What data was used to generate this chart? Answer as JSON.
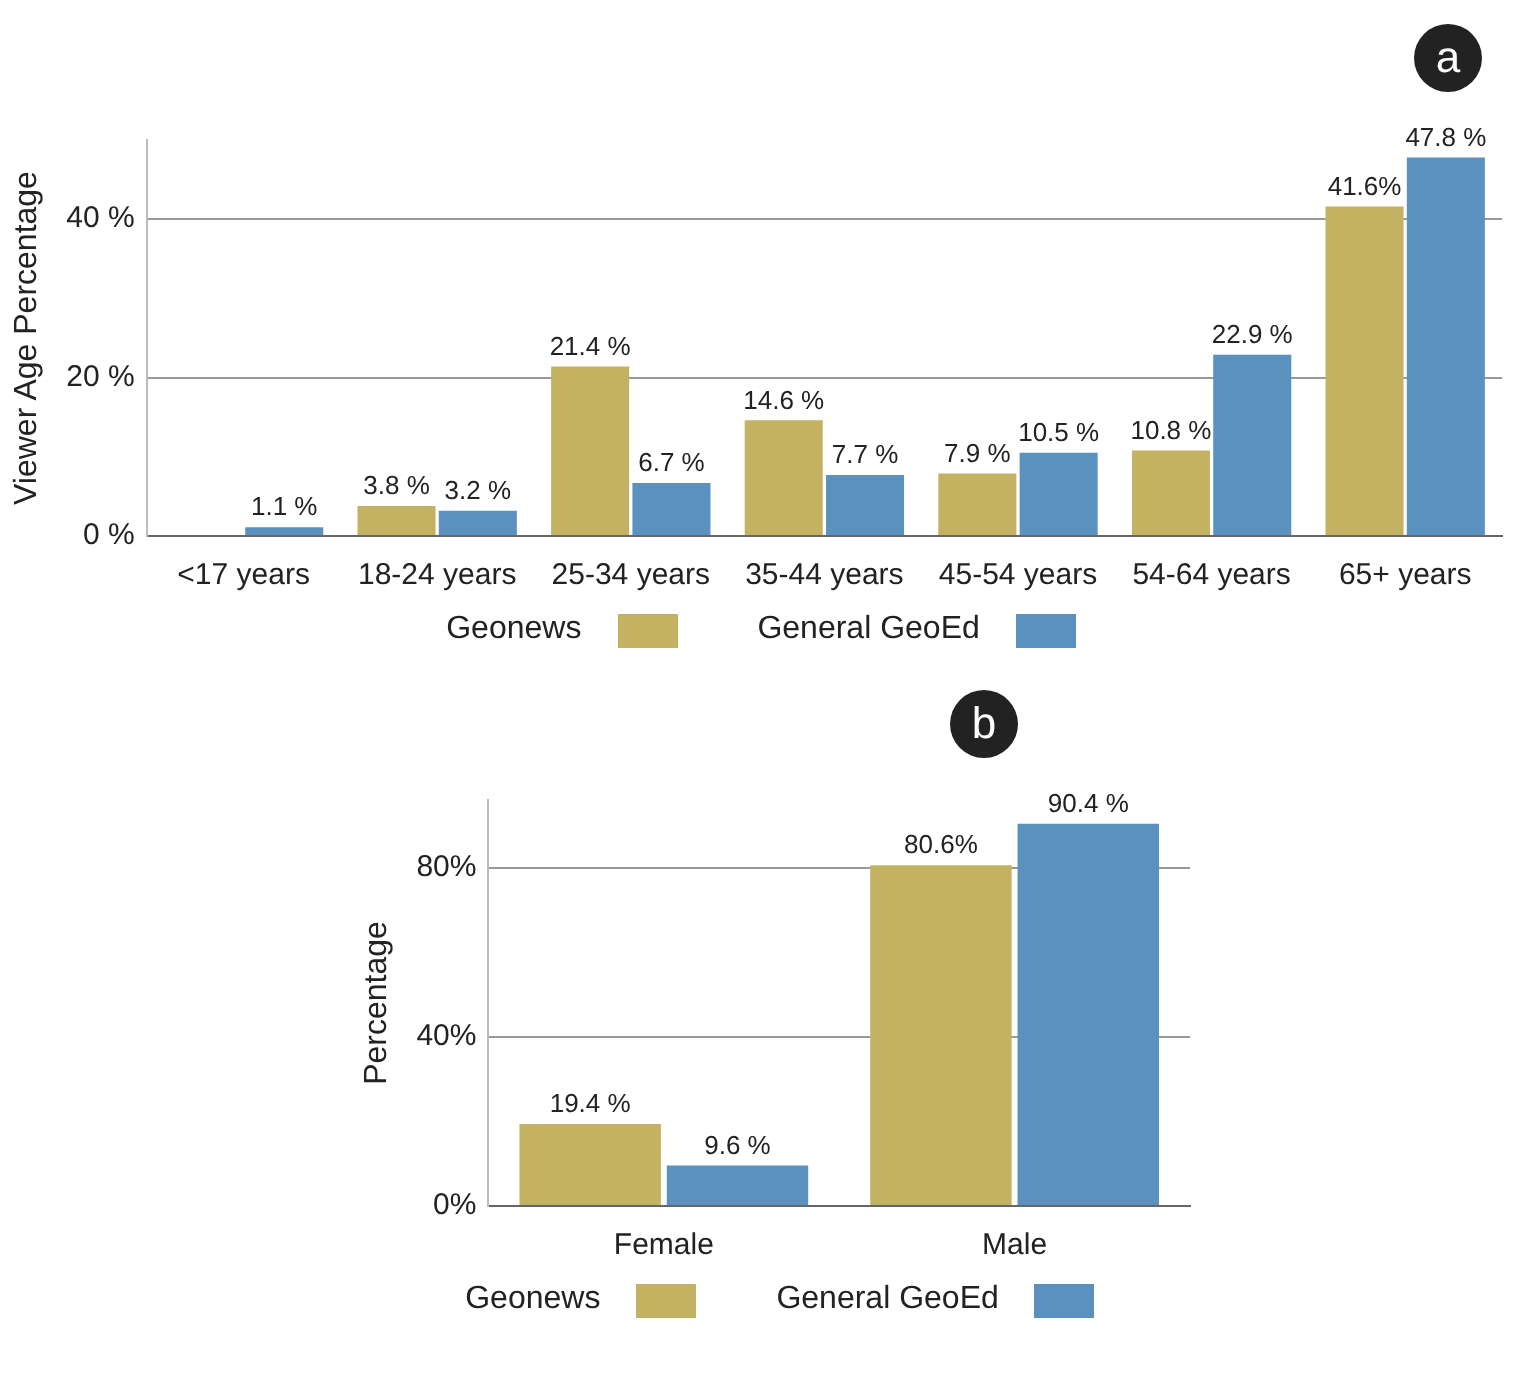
{
  "chart_data": [
    {
      "type": "bar",
      "annotations": [
        "a"
      ],
      "ylabel": "Viewer Age Percentage",
      "categories": [
        "<17 years",
        "18-24 years",
        "25-34 years",
        "35-44 years",
        "45-54 years",
        "54-64 years",
        "65+ years"
      ],
      "series": [
        {
          "name": "Geonews",
          "color": "#c4b263",
          "values": [
            null,
            3.8,
            21.4,
            14.6,
            7.9,
            10.8,
            41.6
          ],
          "value_labels": [
            null,
            "3.8 %",
            "21.4 %",
            "14.6 %",
            "7.9 %",
            "10.8 %",
            "41.6%"
          ]
        },
        {
          "name": "General GeoEd",
          "color": "#5b91bf",
          "values": [
            1.1,
            3.2,
            6.7,
            7.7,
            10.5,
            22.9,
            47.8
          ],
          "value_labels": [
            "1.1 %",
            "3.2 %",
            "6.7 %",
            "7.7 %",
            "10.5 %",
            "22.9 %",
            "47.8 %"
          ]
        }
      ],
      "ylim": [
        0,
        50
      ],
      "yticks": [
        {
          "value": 0,
          "label": "0 %"
        },
        {
          "value": 20,
          "label": "20 %"
        },
        {
          "value": 40,
          "label": "40 %"
        }
      ],
      "grid": "y",
      "legend": "bottom"
    },
    {
      "type": "bar",
      "annotations": [
        "b"
      ],
      "ylabel": "Percentage",
      "categories": [
        "Female",
        "Male"
      ],
      "series": [
        {
          "name": "Geonews",
          "color": "#c4b263",
          "values": [
            19.4,
            80.6
          ],
          "value_labels": [
            "19.4 %",
            "80.6%"
          ]
        },
        {
          "name": "General GeoEd",
          "color": "#5b91bf",
          "values": [
            9.6,
            90.4
          ],
          "value_labels": [
            "9.6 %",
            "90.4 %"
          ]
        }
      ],
      "ylim": [
        0,
        96
      ],
      "yticks": [
        {
          "value": 0,
          "label": "0%"
        },
        {
          "value": 40,
          "label": "40%"
        },
        {
          "value": 80,
          "label": "80%"
        }
      ],
      "grid": "y",
      "legend": "bottom"
    }
  ]
}
